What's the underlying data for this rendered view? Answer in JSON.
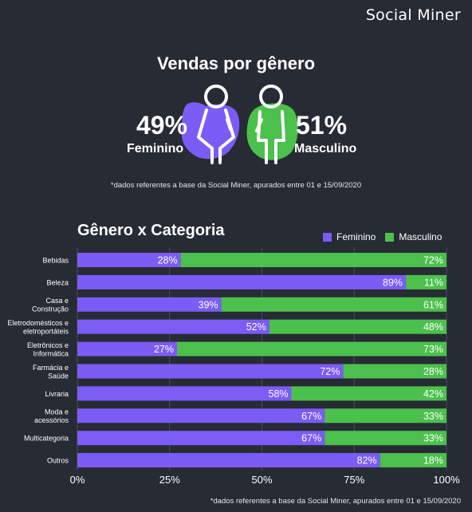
{
  "brand": "Social Miner",
  "top": {
    "title": "Vendas por gênero",
    "female_pct": "49%",
    "female_label": "Feminino",
    "male_pct": "51%",
    "male_label": "Masculino",
    "footnote": "*dados referentes a base da Social Miner, apurados entre 01 e 15/09/2020"
  },
  "colors": {
    "feminino": "#7b5cf5",
    "masculino": "#4cc04c",
    "background": "#262b34"
  },
  "chart_data": {
    "type": "bar",
    "orientation": "horizontal",
    "stacked": true,
    "title": "Gênero x Categoria",
    "categories": [
      [
        "Bebidas"
      ],
      [
        "Beleza"
      ],
      [
        "Casa e",
        "Construção"
      ],
      [
        "Eletrodomésticos e",
        "eletroportáteis"
      ],
      [
        "Eletrônicos e",
        "Informática"
      ],
      [
        "Farmácia e",
        "Saúde"
      ],
      [
        "Livraria"
      ],
      [
        "Moda e",
        "acessórios"
      ],
      [
        "Multicategoria"
      ],
      [
        "Outros"
      ]
    ],
    "series": [
      {
        "name": "Feminino",
        "values": [
          28,
          89,
          39,
          52,
          27,
          72,
          58,
          67,
          67,
          82
        ]
      },
      {
        "name": "Masculino",
        "values": [
          72,
          11,
          61,
          48,
          73,
          28,
          42,
          33,
          33,
          18
        ]
      }
    ],
    "x_ticks": [
      "0%",
      "25%",
      "50%",
      "75%",
      "100%"
    ],
    "xlim": [
      0,
      100
    ],
    "grid": true,
    "legend_position": "top-right",
    "footnote": "*dados referentes a base da Social Miner, apurados entre 01 e 15/09/2020"
  }
}
